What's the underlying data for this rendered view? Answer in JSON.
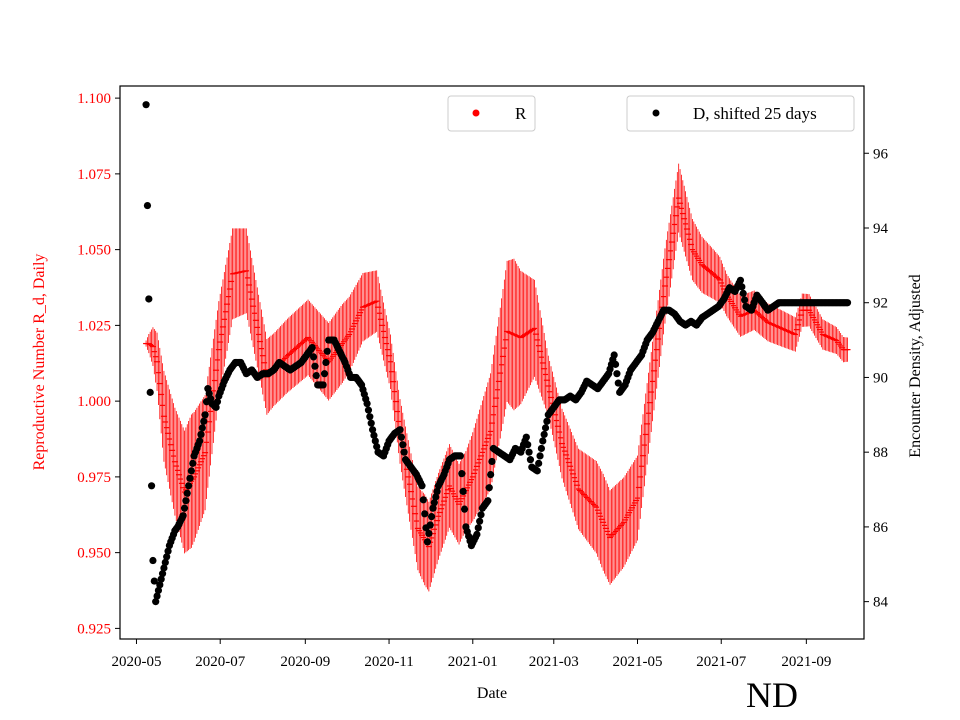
{
  "chart_data": {
    "type": "scatter",
    "state_label": "ND",
    "xlabel": "Date",
    "ylabel_left": "Reproductive Number R_d, Daily",
    "ylabel_right": "Encounter Density, Adjusted",
    "x_ticks": [
      "2020-05",
      "2020-07",
      "2020-09",
      "2020-11",
      "2021-01",
      "2021-03",
      "2021-05",
      "2021-07",
      "2021-09"
    ],
    "y_left_ticks": [
      "0.925",
      "0.950",
      "0.975",
      "1.000",
      "1.025",
      "1.050",
      "1.075",
      "1.100"
    ],
    "y_right_ticks": [
      "84",
      "86",
      "88",
      "90",
      "92",
      "94",
      "96"
    ],
    "xlim_days": [
      -12,
      530
    ],
    "ylim_left": [
      0.9215,
      1.104
    ],
    "ylim_right": [
      83.0,
      97.8
    ],
    "colors": {
      "R": "#ff0000",
      "D": "#000000",
      "left_axis": "#ff0000"
    },
    "legend": [
      {
        "label": "R",
        "color": "#ff0000"
      },
      {
        "label": "D, shifted 25 days",
        "color": "#000000"
      }
    ],
    "series": [
      {
        "name": "R",
        "color": "#ff0000",
        "style": "errorbar-scatter",
        "knots_day": [
          7,
          9,
          12,
          15,
          20,
          28,
          35,
          42,
          50,
          60,
          70,
          80,
          95,
          110,
          125,
          140,
          155,
          165,
          175,
          185,
          192,
          198,
          205,
          213,
          220,
          228,
          235,
          245,
          258,
          270,
          280,
          290,
          300,
          310,
          322,
          335,
          345,
          355,
          365,
          375,
          385,
          395,
          405,
          412,
          420,
          425,
          430,
          440,
          450,
          460,
          470,
          480,
          485,
          490,
          500,
          510,
          515,
          518
        ],
        "knots_value": [
          1.019,
          1.019,
          1.018,
          1.013,
          0.995,
          0.98,
          0.97,
          0.975,
          0.983,
          1.017,
          1.042,
          1.043,
          1.008,
          1.015,
          1.021,
          1.013,
          1.022,
          1.031,
          1.033,
          1.013,
          0.99,
          0.975,
          0.958,
          0.952,
          0.962,
          0.972,
          0.966,
          0.975,
          0.99,
          1.023,
          1.021,
          1.024,
          1.005,
          0.986,
          0.971,
          0.965,
          0.955,
          0.96,
          0.968,
          1.003,
          1.038,
          1.067,
          1.05,
          1.045,
          1.042,
          1.04,
          1.035,
          1.028,
          1.03,
          1.026,
          1.024,
          1.022,
          1.03,
          1.03,
          1.022,
          1.02,
          1.017,
          1.017
        ],
        "err_knots_day": [
          7,
          20,
          40,
          60,
          100,
          150,
          185,
          210,
          240,
          275,
          300,
          340,
          390,
          430,
          470,
          500,
          518
        ],
        "err_knots_value": [
          0.001,
          0.015,
          0.022,
          0.016,
          0.012,
          0.013,
          0.009,
          0.015,
          0.013,
          0.025,
          0.01,
          0.016,
          0.012,
          0.007,
          0.006,
          0.005,
          0.004
        ]
      },
      {
        "name": "D, shifted 25 days",
        "color": "#000000",
        "style": "scatter",
        "knots_day": [
          7,
          8,
          9,
          10,
          11,
          12,
          14,
          16,
          20,
          24,
          28,
          30,
          34,
          38,
          42,
          46,
          50,
          52,
          55,
          58,
          60,
          64,
          68,
          72,
          76,
          80,
          84,
          88,
          92,
          96,
          100,
          104,
          108,
          112,
          116,
          120,
          124,
          128,
          132,
          136,
          140,
          144,
          148,
          152,
          156,
          160,
          164,
          168,
          172,
          176,
          180,
          184,
          188,
          192,
          196,
          200,
          204,
          208,
          212,
          216,
          220,
          224,
          228,
          232,
          236,
          240,
          244,
          248,
          252,
          256,
          260,
          264,
          268,
          272,
          276,
          280,
          284,
          288,
          292,
          296,
          300,
          304,
          308,
          312,
          316,
          320,
          324,
          328,
          332,
          336,
          340,
          344,
          348,
          352,
          356,
          360,
          364,
          368,
          372,
          376,
          380,
          384,
          388,
          392,
          396,
          400,
          404,
          408,
          412,
          416,
          420,
          424,
          428,
          432,
          436,
          440,
          444,
          448,
          452,
          456,
          460,
          464,
          468,
          472,
          476,
          480,
          484,
          488,
          492,
          496,
          500,
          504,
          508,
          512,
          516,
          518
        ],
        "knots_value": [
          97.3,
          94.6,
          92.1,
          89.6,
          87.1,
          85.1,
          84.0,
          84.3,
          84.9,
          85.5,
          85.9,
          86.0,
          86.3,
          87.1,
          87.9,
          88.3,
          89.0,
          89.7,
          89.3,
          89.2,
          89.5,
          89.9,
          90.2,
          90.4,
          90.4,
          90.1,
          90.2,
          90.0,
          90.1,
          90.1,
          90.2,
          90.4,
          90.3,
          90.2,
          90.3,
          90.4,
          90.6,
          90.8,
          89.8,
          89.8,
          91.0,
          91.0,
          90.7,
          90.4,
          90.0,
          90.0,
          89.8,
          89.3,
          88.6,
          88.0,
          87.9,
          88.3,
          88.5,
          88.6,
          87.8,
          87.6,
          87.4,
          87.1,
          85.6,
          86.5,
          87.1,
          87.4,
          87.8,
          87.9,
          87.9,
          86.0,
          85.5,
          85.8,
          86.5,
          86.7,
          88.1,
          88.0,
          87.9,
          87.8,
          88.1,
          88.0,
          88.4,
          87.6,
          87.5,
          88.3,
          89.0,
          89.2,
          89.4,
          89.4,
          89.5,
          89.4,
          89.6,
          89.9,
          89.8,
          89.7,
          89.9,
          90.1,
          90.6,
          89.6,
          89.8,
          90.2,
          90.4,
          90.6,
          91.0,
          91.2,
          91.5,
          91.8,
          91.8,
          91.7,
          91.5,
          91.4,
          91.5,
          91.4,
          91.6,
          91.7,
          91.8,
          91.9,
          92.1,
          92.4,
          92.3,
          92.6,
          91.9,
          91.8,
          92.2,
          92.0,
          91.8,
          91.9,
          92.0,
          92.0,
          92.0,
          92.0,
          92.0,
          92.0,
          92.0,
          92.0,
          92.0,
          92.0,
          92.0,
          92.0,
          92.0,
          92.0
        ]
      }
    ]
  }
}
